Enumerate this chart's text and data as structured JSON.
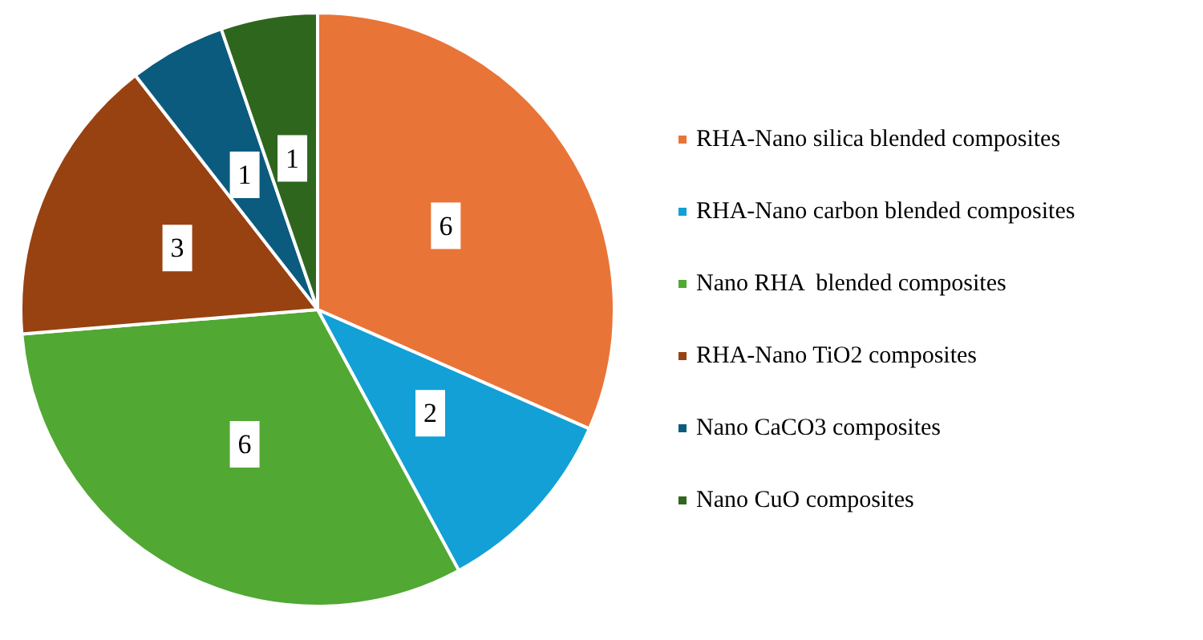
{
  "chart_data": {
    "type": "pie",
    "categories": [
      "RHA-Nano silica blended composites",
      "RHA-Nano carbon blended composites",
      "Nano RHA  blended composites",
      "RHA-Nano TiO2 composites",
      "Nano CaCO3 composites",
      "Nano CuO composites"
    ],
    "values": [
      6,
      2,
      6,
      3,
      1,
      1
    ],
    "colors": [
      "#e97437",
      "#12a0d6",
      "#51a833",
      "#984211",
      "#0b5b7e",
      "#2e661e"
    ],
    "data_labels": true,
    "legend": "right"
  }
}
